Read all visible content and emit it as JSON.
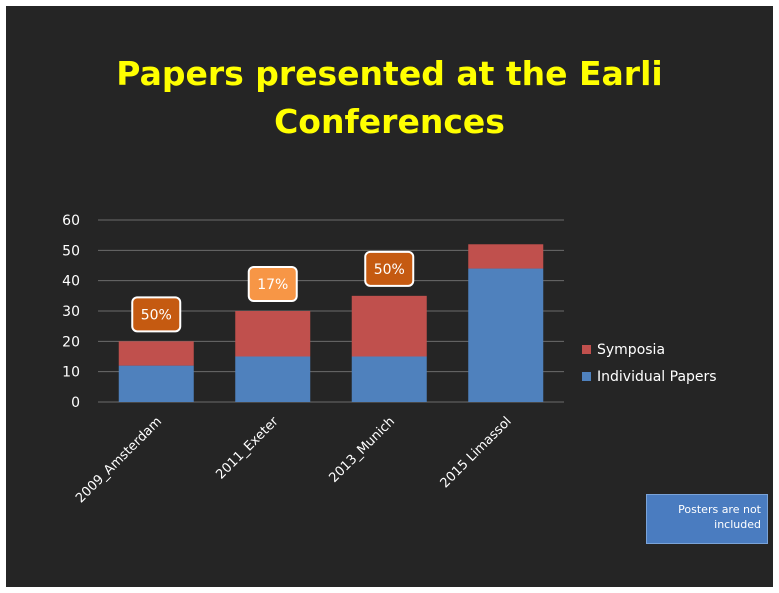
{
  "title_line1": "Papers presented at the Earli",
  "title_line2": "Conferences",
  "note": "Posters are not included",
  "chart_data": {
    "type": "bar",
    "stacked": true,
    "categories": [
      "2009_Amsterdam",
      "2011_Exeter",
      "2013_Munich",
      "2015 Limassol"
    ],
    "series": [
      {
        "name": "Individual Papers",
        "values": [
          12,
          15,
          15,
          44
        ],
        "color": "#4f81bd"
      },
      {
        "name": "Symposia",
        "values": [
          8,
          15,
          20,
          8
        ],
        "color": "#c0504d"
      }
    ],
    "yticks": [
      0,
      10,
      20,
      30,
      40,
      50,
      60
    ],
    "ylim": [
      0,
      60
    ],
    "grid": true,
    "legend": "right",
    "annotations": [
      {
        "category": "2009_Amsterdam",
        "text": "50%",
        "color": "#c55a11"
      },
      {
        "category": "2011_Exeter",
        "text": "17%",
        "color": "#f79646"
      },
      {
        "category": "2013_Munich",
        "text": "50%",
        "color": "#c55a11"
      }
    ]
  },
  "colors": {
    "background": "#252525",
    "title": "#ffff00",
    "gridline": "#6b6b6b",
    "text": "#ffffff",
    "note_box": "#4a7cc0"
  }
}
